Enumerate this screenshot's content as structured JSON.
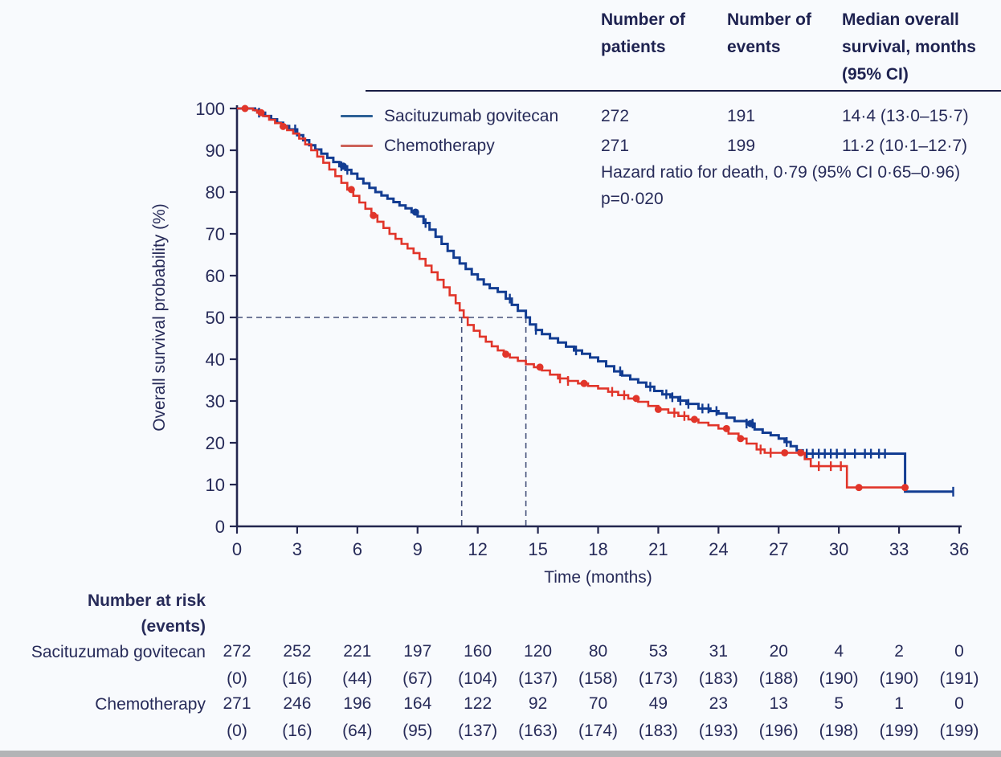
{
  "figure": {
    "summary_table": {
      "col_headers": [
        "Number of patients",
        "Number of events",
        "Median overall survival, months (95% CI)"
      ],
      "rows": [
        {
          "name": "Sacituzumab govitecan",
          "patients": "272",
          "events": "191",
          "median": "14·4 (13·0–15·7)"
        },
        {
          "name": "Chemotherapy",
          "patients": "271",
          "events": "199",
          "median": "11·2 (10·1–12·7)"
        }
      ],
      "hazard_ratio_text": "Hazard ratio for death, 0·79 (95% CI 0·65–0·96)",
      "p_value_text": "p=0·020"
    }
  },
  "chart_data": {
    "type": "line",
    "subtype": "kaplan-meier-step",
    "xlabel": "Time (months)",
    "ylabel": "Overall survival probability (%)",
    "xlim": [
      0,
      36
    ],
    "ylim": [
      0,
      100
    ],
    "x_ticks": [
      0,
      3,
      6,
      9,
      12,
      15,
      18,
      21,
      24,
      27,
      30,
      33,
      36
    ],
    "y_ticks": [
      0,
      10,
      20,
      30,
      40,
      50,
      60,
      70,
      80,
      90,
      100
    ],
    "grid": false,
    "legend_position": "top-left-inside",
    "median_guides": {
      "y": 50,
      "x_values": [
        11.2,
        14.4
      ]
    },
    "series": [
      {
        "name": "Sacituzumab govitecan",
        "color": "#123c92",
        "legend_swatch_color": "#2d6096",
        "n_patients": 272,
        "n_events": 191,
        "median_os_months": 14.4,
        "median_os_ci": "13·0–15·7",
        "points": [
          [
            0,
            100
          ],
          [
            0.9,
            99.6
          ],
          [
            1.1,
            99
          ],
          [
            1.4,
            98.2
          ],
          [
            1.7,
            97.4
          ],
          [
            2,
            96.6
          ],
          [
            2.3,
            95.8
          ],
          [
            2.6,
            95
          ],
          [
            3,
            93.6
          ],
          [
            3.3,
            92.4
          ],
          [
            3.6,
            91.2
          ],
          [
            3.9,
            90.2
          ],
          [
            4.2,
            89.2
          ],
          [
            4.5,
            88.2
          ],
          [
            4.8,
            87.2
          ],
          [
            5.1,
            86.2
          ],
          [
            5.4,
            85.3
          ],
          [
            5.7,
            84.4
          ],
          [
            6,
            83.2
          ],
          [
            6.3,
            82.1
          ],
          [
            6.6,
            81
          ],
          [
            6.9,
            80
          ],
          [
            7.2,
            79.2
          ],
          [
            7.5,
            78.4
          ],
          [
            7.8,
            77.6
          ],
          [
            8.1,
            76.8
          ],
          [
            8.4,
            76.1
          ],
          [
            8.7,
            75.2
          ],
          [
            9,
            74.2
          ],
          [
            9.3,
            72.6
          ],
          [
            9.6,
            71
          ],
          [
            9.9,
            69.3
          ],
          [
            10.2,
            67.6
          ],
          [
            10.5,
            65.9
          ],
          [
            10.8,
            64.3
          ],
          [
            11.1,
            62.9
          ],
          [
            11.4,
            61.6
          ],
          [
            11.7,
            60.3
          ],
          [
            12,
            59.1
          ],
          [
            12.3,
            57.9
          ],
          [
            12.6,
            57
          ],
          [
            13,
            56.1
          ],
          [
            13.4,
            54.5
          ],
          [
            13.7,
            53
          ],
          [
            14,
            51.6
          ],
          [
            14.4,
            50
          ],
          [
            14.6,
            48.3
          ],
          [
            14.9,
            47
          ],
          [
            15.2,
            46
          ],
          [
            15.6,
            45
          ],
          [
            16,
            44
          ],
          [
            16.4,
            43
          ],
          [
            16.8,
            42.1
          ],
          [
            17.2,
            41.3
          ],
          [
            17.6,
            40.4
          ],
          [
            18,
            39.5
          ],
          [
            18.4,
            38.3
          ],
          [
            18.8,
            37.1
          ],
          [
            19.2,
            36.1
          ],
          [
            19.6,
            35.2
          ],
          [
            20,
            34.4
          ],
          [
            20.4,
            33.4
          ],
          [
            20.8,
            32.4
          ],
          [
            21.2,
            31.6
          ],
          [
            21.6,
            30.9
          ],
          [
            22,
            30.1
          ],
          [
            22.4,
            29.3
          ],
          [
            23,
            28.2
          ],
          [
            23.6,
            27.6
          ],
          [
            24,
            27
          ],
          [
            24.4,
            26
          ],
          [
            24.8,
            25.2
          ],
          [
            25.4,
            24.6
          ],
          [
            25.8,
            23.2
          ],
          [
            26.2,
            22.4
          ],
          [
            26.6,
            21.8
          ],
          [
            27,
            21
          ],
          [
            27.3,
            20.2
          ],
          [
            27.6,
            19.2
          ],
          [
            27.9,
            18.2
          ],
          [
            28.2,
            17.4
          ],
          [
            33.3,
            17.4
          ],
          [
            33.3,
            8.3
          ],
          [
            35.7,
            8.3
          ]
        ],
        "censor_times": [
          1.1,
          2.9,
          5.2,
          5.5,
          9.4,
          13.6,
          14.9,
          16.9,
          19.1,
          20.6,
          21.4,
          21.7,
          22.1,
          22.5,
          23.2,
          23.5,
          23.9,
          25.4,
          25.7,
          27.4,
          28.4,
          28.7,
          29.0,
          29.3,
          29.6,
          29.9,
          30.3,
          30.8,
          31.3,
          31.6,
          32.0,
          32.3,
          35.7
        ],
        "event_dot_times": [
          5.3,
          8.9,
          25.6
        ]
      },
      {
        "name": "Chemotherapy",
        "color": "#e1352a",
        "legend_swatch_color": "#cc6158",
        "n_patients": 271,
        "n_events": 199,
        "median_os_months": 11.2,
        "median_os_ci": "10·1–12·7",
        "points": [
          [
            0,
            100
          ],
          [
            0.8,
            99.6
          ],
          [
            1,
            99
          ],
          [
            1.3,
            98.2
          ],
          [
            1.6,
            97.3
          ],
          [
            1.9,
            96.5
          ],
          [
            2.2,
            95.7
          ],
          [
            2.5,
            94.8
          ],
          [
            2.8,
            94
          ],
          [
            3.1,
            92.8
          ],
          [
            3.4,
            91.4
          ],
          [
            3.7,
            90
          ],
          [
            4,
            88.5
          ],
          [
            4.3,
            87
          ],
          [
            4.6,
            85.4
          ],
          [
            4.9,
            83.8
          ],
          [
            5.2,
            82.2
          ],
          [
            5.5,
            80.6
          ],
          [
            5.8,
            79.1
          ],
          [
            6.1,
            77.5
          ],
          [
            6.4,
            76
          ],
          [
            6.7,
            74.4
          ],
          [
            7,
            72.9
          ],
          [
            7.3,
            71.4
          ],
          [
            7.6,
            70
          ],
          [
            7.9,
            68.8
          ],
          [
            8.2,
            67.6
          ],
          [
            8.5,
            66.5
          ],
          [
            8.8,
            65.4
          ],
          [
            9.1,
            64
          ],
          [
            9.4,
            62.4
          ],
          [
            9.7,
            60.8
          ],
          [
            10,
            59
          ],
          [
            10.3,
            57.2
          ],
          [
            10.6,
            55.3
          ],
          [
            10.9,
            53.4
          ],
          [
            11.1,
            51.7
          ],
          [
            11.3,
            50
          ],
          [
            11.5,
            48.2
          ],
          [
            11.8,
            46.8
          ],
          [
            12.1,
            45.4
          ],
          [
            12.4,
            44.2
          ],
          [
            12.7,
            43.1
          ],
          [
            13,
            42.1
          ],
          [
            13.3,
            41.2
          ],
          [
            13.6,
            40.4
          ],
          [
            14,
            39.6
          ],
          [
            14.4,
            38.8
          ],
          [
            14.8,
            38.1
          ],
          [
            15.2,
            37.3
          ],
          [
            15.6,
            36.3
          ],
          [
            16,
            35.4
          ],
          [
            16.5,
            34.8
          ],
          [
            17,
            34.2
          ],
          [
            17.5,
            33.6
          ],
          [
            18,
            33
          ],
          [
            18.5,
            32.2
          ],
          [
            19,
            31.4
          ],
          [
            19.5,
            30.6
          ],
          [
            20,
            29.8
          ],
          [
            20.5,
            28.8
          ],
          [
            21,
            28
          ],
          [
            21.5,
            27.2
          ],
          [
            22,
            26.4
          ],
          [
            22.5,
            25.6
          ],
          [
            23,
            24.8
          ],
          [
            23.5,
            24.2
          ],
          [
            24,
            23.4
          ],
          [
            24.5,
            22.2
          ],
          [
            25,
            21
          ],
          [
            25.4,
            19.8
          ],
          [
            25.9,
            18.4
          ],
          [
            26.3,
            17.6
          ],
          [
            28,
            17.6
          ],
          [
            28.3,
            16.1
          ],
          [
            28.6,
            14.4
          ],
          [
            30.4,
            14.4
          ],
          [
            30.4,
            9.3
          ],
          [
            33.3,
            9.3
          ]
        ],
        "censor_times": [
          16.1,
          16.5,
          18.7,
          19.3,
          21.8,
          22.3,
          26.1,
          26.6,
          29.0,
          29.6,
          30.1
        ],
        "event_dot_times": [
          0.4,
          1.2,
          2.3,
          5.7,
          6.8,
          13.4,
          15.1,
          17.3,
          19.9,
          21.0,
          22.8,
          24.4,
          25.1,
          27.3,
          28.1,
          31.0,
          33.3
        ]
      }
    ]
  },
  "at_risk": {
    "title_line1": "Number at risk",
    "title_line2": "(events)",
    "times": [
      0,
      3,
      6,
      9,
      12,
      15,
      18,
      21,
      24,
      27,
      30,
      33,
      36
    ],
    "rows": [
      {
        "label": "Sacituzumab govitecan",
        "counts": [
          272,
          252,
          221,
          197,
          160,
          120,
          80,
          53,
          31,
          20,
          4,
          2,
          0
        ],
        "events": [
          0,
          16,
          44,
          67,
          104,
          137,
          158,
          173,
          183,
          188,
          190,
          190,
          191
        ]
      },
      {
        "label": "Chemotherapy",
        "counts": [
          271,
          246,
          196,
          164,
          122,
          92,
          70,
          49,
          23,
          13,
          5,
          1,
          0
        ],
        "events": [
          0,
          16,
          64,
          95,
          137,
          163,
          174,
          183,
          193,
          196,
          198,
          199,
          199
        ]
      }
    ]
  },
  "colors": {
    "background": "#f8fafd",
    "text": "#272b59",
    "axis": "#23264f",
    "dashed_guide": "#44507a",
    "header_rule": "#181c44",
    "bottom_strip": "#b3b4b6"
  }
}
